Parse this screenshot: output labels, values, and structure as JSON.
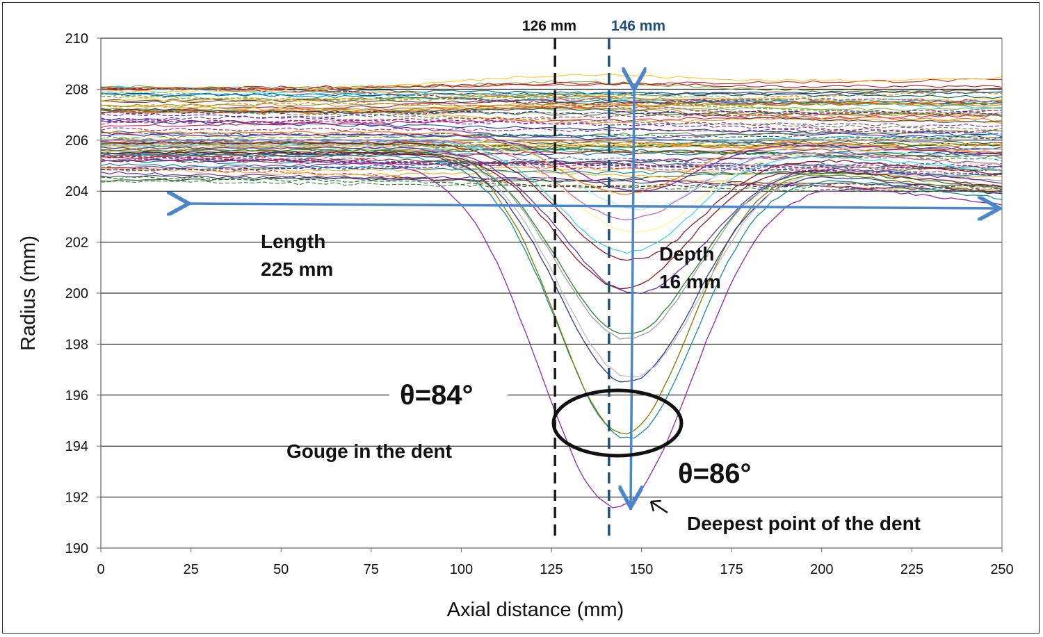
{
  "chart_data": {
    "type": "line",
    "xlabel": "Axial distance (mm)",
    "ylabel": "Radius (mm)",
    "xlim": [
      0,
      250
    ],
    "ylim": [
      190,
      210
    ],
    "x_ticks": [
      "0",
      "25",
      "50",
      "75",
      "100",
      "125",
      "150",
      "175",
      "200",
      "225",
      "250"
    ],
    "y_ticks": [
      "190",
      "192",
      "194",
      "196",
      "198",
      "200",
      "202",
      "204",
      "206",
      "208",
      "210"
    ],
    "grid": "horizontal",
    "legend": "none",
    "series_count_note": "dense family of radius profiles; 16 representative deep-dent profiles listed",
    "dent_center": 146,
    "series": [
      {
        "depth_min": 191.6,
        "baseline": 205.2,
        "center": 143,
        "width": 30,
        "color": "#8e24aa"
      },
      {
        "depth_min": 194.3,
        "baseline": 205.4,
        "center": 146,
        "width": 27,
        "color": "#1b8a8a"
      },
      {
        "depth_min": 194.5,
        "baseline": 205.6,
        "center": 145,
        "width": 26,
        "color": "#7a7a00"
      },
      {
        "depth_min": 196.5,
        "baseline": 205.5,
        "center": 146,
        "width": 27,
        "color": "#283593"
      },
      {
        "depth_min": 196.7,
        "baseline": 205.8,
        "center": 147,
        "width": 28,
        "color": "#bdbdbd"
      },
      {
        "depth_min": 198.4,
        "baseline": 205.6,
        "center": 146,
        "width": 27,
        "color": "#2e7d32"
      },
      {
        "depth_min": 198.2,
        "baseline": 205.9,
        "center": 146,
        "width": 28,
        "color": "#9e9e9e"
      },
      {
        "depth_min": 200.0,
        "baseline": 205.7,
        "center": 148,
        "width": 28,
        "color": "#5e35b1"
      },
      {
        "depth_min": 200.2,
        "baseline": 205.5,
        "center": 145,
        "width": 26,
        "color": "#8b1a1a"
      },
      {
        "depth_min": 201.3,
        "baseline": 205.9,
        "center": 147,
        "width": 27,
        "color": "#8b1a2a"
      },
      {
        "depth_min": 201.6,
        "baseline": 206.0,
        "center": 146,
        "width": 26,
        "color": "#4dd0e1"
      },
      {
        "depth_min": 202.4,
        "baseline": 206.1,
        "center": 148,
        "width": 26,
        "color": "#fff59d"
      },
      {
        "depth_min": 202.9,
        "baseline": 206.0,
        "center": 146,
        "width": 25,
        "color": "#ba68c8"
      },
      {
        "depth_min": 203.3,
        "baseline": 206.2,
        "center": 149,
        "width": 25,
        "color": "#b2ebf2"
      },
      {
        "depth_min": 203.9,
        "baseline": 206.3,
        "center": 145,
        "width": 25,
        "color": "#f57f17"
      },
      {
        "depth_min": 204.0,
        "baseline": 206.2,
        "center": 148,
        "width": 24,
        "color": "#7b1fa2"
      }
    ],
    "annotations": {
      "line_126_label": "126 mm",
      "line_126_x": 126,
      "line_146_label": "146 mm",
      "line_146_x": 146,
      "length_label": "Length",
      "length_value": "225 mm",
      "depth_label": "Depth",
      "depth_value": "16 mm",
      "theta_84": "θ=84°",
      "theta_86": "θ=86°",
      "gouge_label": "Gouge in the dent",
      "deepest_label": "Deepest point of the dent"
    },
    "colors": {
      "arrow": "#4a86c8",
      "line_126": "#1a1a1a",
      "line_146": "#1f4e79",
      "label_146": "#1f4e79"
    }
  }
}
